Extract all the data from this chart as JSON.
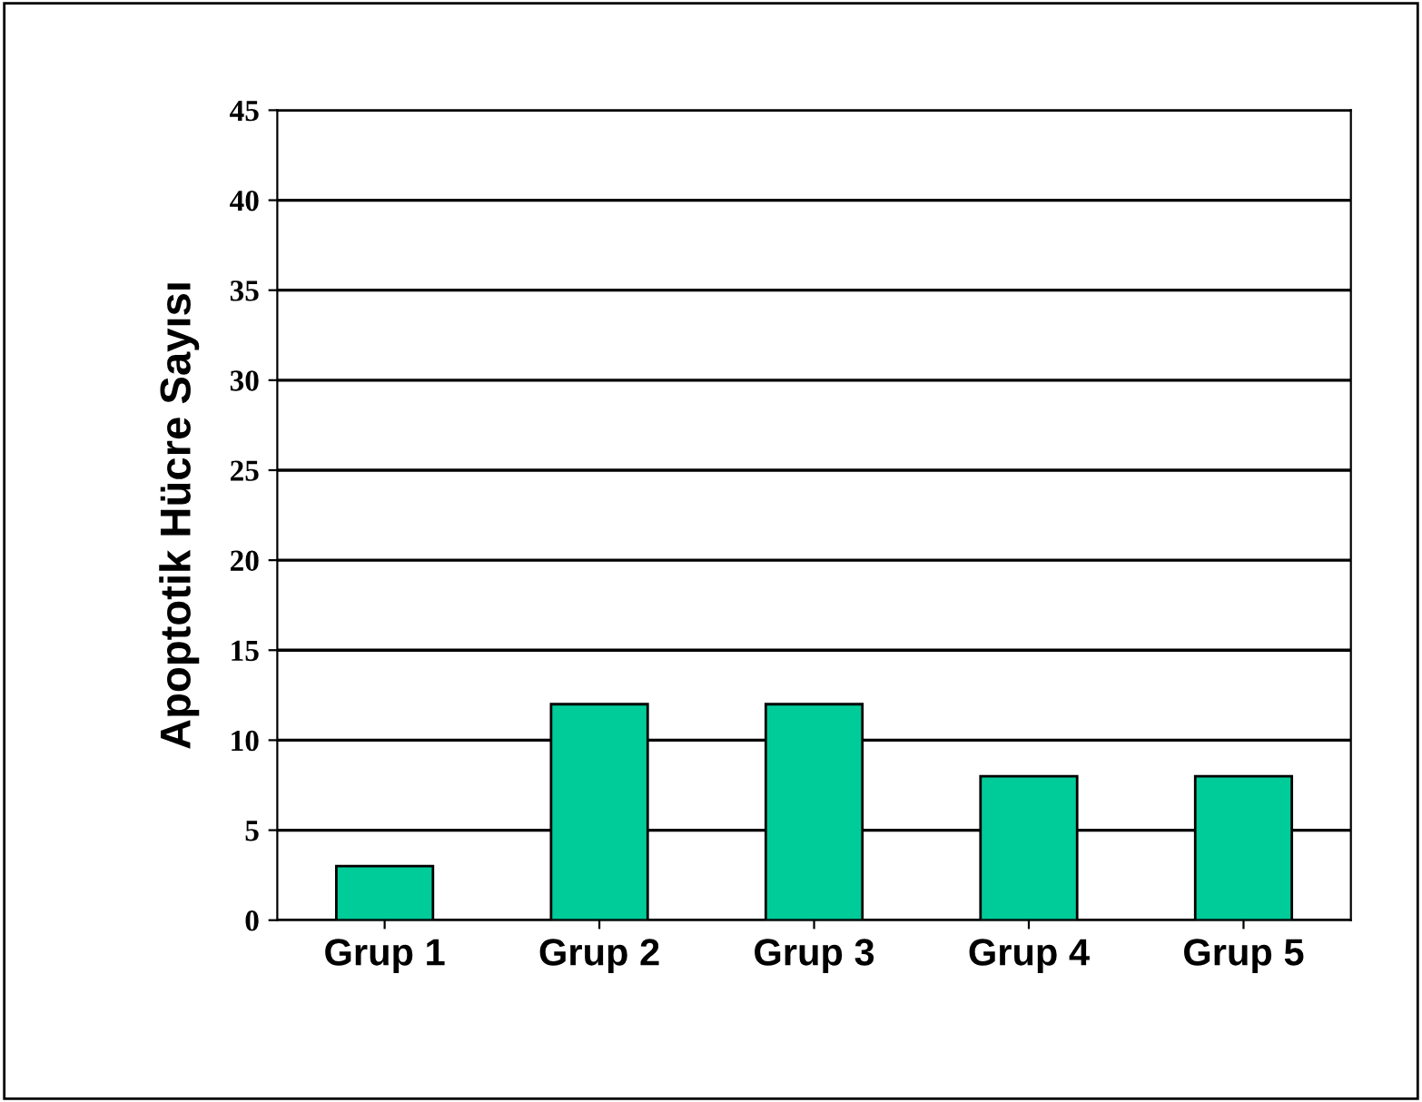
{
  "chart_data": {
    "type": "bar",
    "ylabel": "Apoptotik Hücre Sayısı",
    "categories": [
      "Grup 1",
      "Grup 2",
      "Grup 3",
      "Grup 4",
      "Grup 5"
    ],
    "values": [
      3,
      12,
      12,
      8,
      8
    ],
    "color": "#00cc99",
    "ylim": [
      0,
      45
    ],
    "yticks": [
      0,
      5,
      10,
      15,
      20,
      25,
      30,
      35,
      40,
      45
    ],
    "grid": "y"
  }
}
